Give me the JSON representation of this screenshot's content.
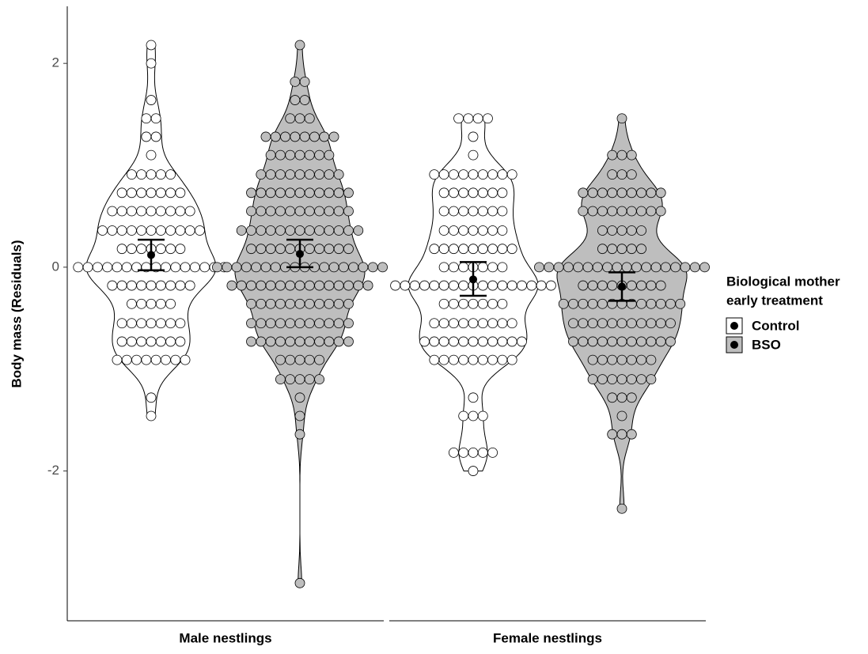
{
  "chart_data": {
    "type": "violin-dot",
    "y_label": "Body mass (Residuals)",
    "categories": [
      "Male nestlings",
      "Female nestlings"
    ],
    "ylim": [
      -3.47,
      2.56
    ],
    "yticks": [
      -2,
      0,
      2
    ],
    "legend_title": [
      "Biological mother",
      "early treatment"
    ],
    "series": [
      {
        "name": "Control",
        "color": "#ffffff",
        "values": [
          0.12,
          -0.12
        ],
        "lower": [
          -0.03,
          -0.28
        ],
        "upper": [
          0.27,
          0.05
        ],
        "dots": [
          {
            "levels": [
              2.18,
              2.0,
              1.64,
              1.46,
              1.28,
              1.1,
              0.91,
              0.73,
              0.55,
              0.36,
              0.18,
              0,
              -0.18,
              -0.36,
              -0.55,
              -0.73,
              -0.91,
              -1.28,
              -1.46
            ],
            "counts": [
              1,
              1,
              1,
              2,
              2,
              1,
              5,
              7,
              9,
              11,
              7,
              16,
              9,
              5,
              7,
              7,
              8,
              1,
              1
            ]
          },
          {
            "levels": [
              1.46,
              1.28,
              1.1,
              0.91,
              0.73,
              0.55,
              0.36,
              0.18,
              0,
              -0.18,
              -0.36,
              -0.55,
              -0.73,
              -0.91,
              -1.28,
              -1.46,
              -1.82,
              -2.0
            ],
            "counts": [
              4,
              1,
              1,
              9,
              7,
              7,
              7,
              9,
              7,
              17,
              7,
              9,
              11,
              9,
              1,
              3,
              5,
              1
            ]
          }
        ]
      },
      {
        "name": "BSO",
        "color": "#bebebe",
        "values": [
          0.13,
          -0.19
        ],
        "lower": [
          0.0,
          -0.33
        ],
        "upper": [
          0.27,
          -0.05
        ],
        "dots": [
          {
            "levels": [
              2.18,
              1.82,
              1.64,
              1.46,
              1.28,
              1.1,
              0.91,
              0.73,
              0.55,
              0.36,
              0.18,
              0,
              -0.18,
              -0.36,
              -0.55,
              -0.73,
              -0.91,
              -1.1,
              -1.28,
              -1.46,
              -1.64,
              -3.1
            ],
            "counts": [
              1,
              2,
              2,
              3,
              8,
              7,
              9,
              11,
              11,
              13,
              11,
              18,
              15,
              11,
              11,
              11,
              5,
              5,
              1,
              1,
              1,
              1
            ]
          },
          {
            "levels": [
              1.46,
              1.1,
              0.91,
              0.73,
              0.55,
              0.36,
              0.18,
              0,
              -0.18,
              -0.36,
              -0.55,
              -0.73,
              -0.91,
              -1.1,
              -1.28,
              -1.46,
              -1.64,
              -2.37
            ],
            "counts": [
              1,
              3,
              3,
              9,
              9,
              5,
              5,
              18,
              9,
              13,
              11,
              11,
              7,
              7,
              3,
              1,
              3,
              1
            ]
          }
        ]
      }
    ]
  }
}
